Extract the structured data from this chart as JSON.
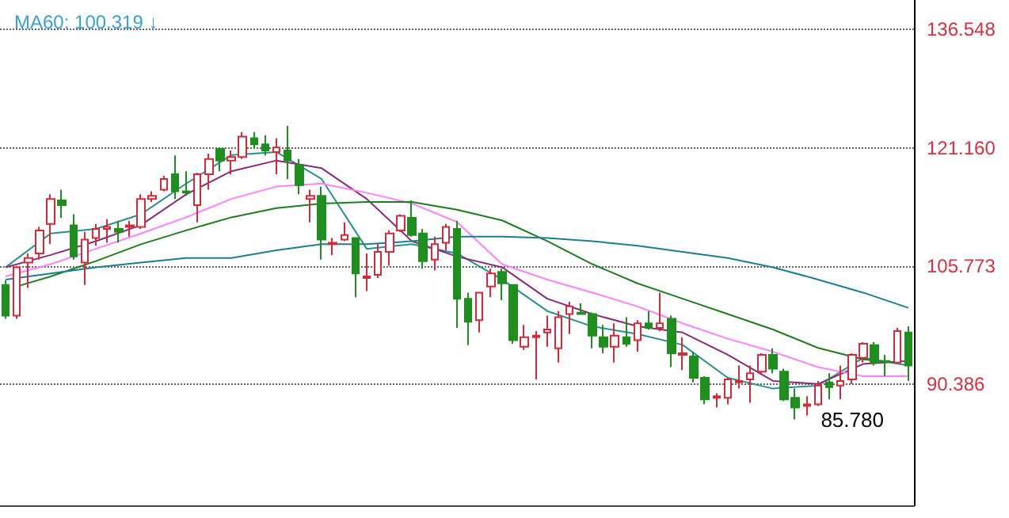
{
  "chart_data": {
    "type": "candlestick",
    "title": "MA60: 100.319 ↓",
    "categories": [
      null,
      null,
      null,
      null,
      null,
      null,
      null,
      null,
      null,
      null,
      null,
      null,
      null,
      null,
      null,
      null,
      null,
      null,
      null,
      null,
      null,
      null,
      null,
      null,
      null,
      null,
      null,
      null,
      null,
      null,
      null,
      null,
      null,
      null,
      null,
      null,
      null,
      null,
      null,
      null,
      null,
      null,
      null,
      null,
      null,
      null,
      null,
      null,
      null,
      null,
      null,
      null,
      null,
      null,
      null,
      null,
      null,
      null,
      null,
      null,
      null,
      null,
      null,
      null,
      null,
      null,
      null,
      null,
      null,
      null,
      null,
      null,
      null,
      null,
      null,
      null,
      null,
      null,
      null,
      null,
      null
    ],
    "ohlc": [
      [
        103.3,
        103.9,
        98.9,
        99.3
      ],
      [
        99.3,
        105.6,
        98.9,
        105.6
      ],
      [
        106.2,
        107.4,
        102.9,
        106.8
      ],
      [
        107.4,
        110.85,
        106.6,
        110.4
      ],
      [
        111.25,
        115.1,
        108.6,
        114.5
      ],
      [
        114.3,
        115.7,
        112.05,
        113.7
      ],
      [
        111.05,
        112.5,
        106.6,
        107.0
      ],
      [
        106.2,
        110.2,
        103.3,
        109.2
      ],
      [
        109.4,
        111.25,
        108.4,
        110.6
      ],
      [
        110.6,
        111.85,
        108.8,
        110.85
      ],
      [
        110.6,
        111.65,
        108.8,
        110.2
      ],
      [
        110.85,
        111.65,
        109.6,
        111.05
      ],
      [
        110.85,
        115.1,
        110.6,
        114.5
      ],
      [
        114.5,
        115.5,
        114.1,
        114.9
      ],
      [
        115.7,
        117.5,
        115.5,
        117.1
      ],
      [
        117.7,
        120.15,
        114.5,
        115.5
      ],
      [
        115.5,
        118.1,
        114.9,
        115.3
      ],
      [
        113.7,
        117.9,
        111.45,
        117.7
      ],
      [
        117.7,
        120.4,
        115.7,
        119.7
      ],
      [
        121.0,
        121.2,
        118.1,
        119.5
      ],
      [
        119.5,
        120.8,
        117.7,
        119.95
      ],
      [
        119.95,
        123.2,
        119.7,
        122.6
      ],
      [
        122.4,
        123.2,
        121.0,
        121.6
      ],
      [
        121.6,
        122.8,
        120.15,
        120.8
      ],
      [
        120.6,
        122.4,
        117.7,
        121.2
      ],
      [
        120.8,
        124.0,
        117.1,
        119.5
      ],
      [
        118.9,
        119.7,
        115.1,
        116.3
      ],
      [
        114.5,
        115.7,
        111.45,
        114.9
      ],
      [
        114.9,
        116.1,
        106.6,
        109.2
      ],
      [
        108.6,
        109.4,
        107.2,
        108.8
      ],
      [
        109.2,
        111.45,
        109.0,
        109.8
      ],
      [
        109.4,
        109.4,
        101.7,
        104.8
      ],
      [
        104.2,
        107.4,
        102.5,
        104.4
      ],
      [
        104.6,
        108.6,
        104.2,
        107.6
      ],
      [
        107.6,
        110.4,
        105.8,
        110.0
      ],
      [
        110.4,
        112.5,
        110.2,
        112.3
      ],
      [
        112.05,
        114.3,
        109.6,
        109.8
      ],
      [
        110.0,
        110.6,
        105.4,
        106.4
      ],
      [
        106.6,
        109.6,
        105.2,
        108.6
      ],
      [
        108.8,
        111.25,
        107.8,
        110.85
      ],
      [
        110.6,
        111.65,
        97.7,
        101.5
      ],
      [
        101.5,
        102.3,
        95.45,
        98.5
      ],
      [
        98.7,
        102.3,
        97.1,
        102.3
      ],
      [
        103.1,
        105.4,
        101.7,
        104.8
      ],
      [
        105.0,
        105.4,
        101.3,
        103.5
      ],
      [
        103.3,
        103.3,
        95.65,
        96.1
      ],
      [
        95.25,
        98.1,
        94.85,
        96.5
      ],
      [
        96.5,
        97.3,
        91.0,
        96.7
      ],
      [
        97.1,
        99.3,
        95.25,
        97.5
      ],
      [
        95.05,
        99.9,
        93.2,
        99.1
      ],
      [
        99.5,
        101.1,
        96.9,
        100.5
      ],
      [
        99.7,
        100.9,
        99.5,
        99.5
      ],
      [
        99.5,
        99.7,
        95.05,
        96.7
      ],
      [
        96.5,
        98.1,
        94.4,
        95.25
      ],
      [
        95.25,
        98.3,
        93.2,
        96.7
      ],
      [
        96.5,
        99.1,
        95.25,
        95.65
      ],
      [
        96.1,
        98.7,
        94.6,
        98.3
      ],
      [
        98.3,
        99.9,
        97.5,
        97.7
      ],
      [
        97.7,
        102.3,
        97.3,
        98.3
      ],
      [
        98.9,
        99.3,
        92.6,
        94.4
      ],
      [
        94.2,
        96.5,
        92.2,
        94.4
      ],
      [
        94.0,
        94.6,
        90.6,
        91.2
      ],
      [
        91.2,
        91.4,
        87.75,
        88.4
      ],
      [
        88.6,
        89.2,
        87.35,
        88.8
      ],
      [
        88.6,
        91.2,
        87.75,
        91.0
      ],
      [
        90.6,
        92.8,
        89.8,
        90.8
      ],
      [
        91.0,
        92.8,
        87.95,
        91.8
      ],
      [
        92.0,
        94.4,
        91.8,
        94.2
      ],
      [
        94.2,
        95.05,
        91.8,
        92.4
      ],
      [
        92.0,
        92.4,
        88.2,
        88.4
      ],
      [
        88.6,
        89.8,
        85.78,
        87.35
      ],
      [
        87.55,
        88.8,
        86.3,
        87.75
      ],
      [
        87.75,
        90.8,
        87.55,
        90.2
      ],
      [
        90.6,
        91.8,
        88.4,
        90.0
      ],
      [
        90.2,
        92.8,
        88.4,
        90.8
      ],
      [
        91.0,
        94.4,
        90.4,
        94.2
      ],
      [
        93.8,
        95.85,
        93.2,
        95.65
      ],
      [
        95.45,
        95.85,
        92.8,
        93.2
      ],
      [
        93.4,
        94.2,
        91.4,
        93.3
      ],
      [
        93.2,
        97.7,
        93.2,
        97.3
      ],
      [
        97.1,
        97.9,
        90.8,
        92.8
      ]
    ],
    "colors": [
      "#1e8f1e",
      "#d42a3a",
      "#d42a3a",
      "#d42a3a",
      "#d42a3a",
      "#1e8f1e",
      "#1e8f1e",
      "#d42a3a",
      "#d42a3a",
      "#d42a3a",
      "#1e8f1e",
      "#d42a3a",
      "#d42a3a",
      "#d42a3a",
      "#d42a3a",
      "#1e8f1e",
      "#1e8f1e",
      "#d42a3a",
      "#d42a3a",
      "#1e8f1e",
      "#d42a3a",
      "#d42a3a",
      "#1e8f1e",
      "#1e8f1e",
      "#d42a3a",
      "#1e8f1e",
      "#1e8f1e",
      "#d42a3a",
      "#1e8f1e",
      "#d42a3a",
      "#d42a3a",
      "#1e8f1e",
      "#d42a3a",
      "#d42a3a",
      "#d42a3a",
      "#d42a3a",
      "#1e8f1e",
      "#1e8f1e",
      "#d42a3a",
      "#d42a3a",
      "#1e8f1e",
      "#1e8f1e",
      "#d42a3a",
      "#d42a3a",
      "#1e8f1e",
      "#1e8f1e",
      "#d42a3a",
      "#d42a3a",
      "#d42a3a",
      "#d42a3a",
      "#d42a3a",
      "#1e8f1e",
      "#1e8f1e",
      "#1e8f1e",
      "#d42a3a",
      "#1e8f1e",
      "#d42a3a",
      "#1e8f1e",
      "#d42a3a",
      "#1e8f1e",
      "#d42a3a",
      "#1e8f1e",
      "#1e8f1e",
      "#d42a3a",
      "#d42a3a",
      "#d42a3a",
      "#d42a3a",
      "#d42a3a",
      "#1e8f1e",
      "#1e8f1e",
      "#1e8f1e",
      "#d42a3a",
      "#d42a3a",
      "#1e8f1e",
      "#d42a3a",
      "#d42a3a",
      "#d42a3a",
      "#1e8f1e",
      "#1e8f1e",
      "#d42a3a",
      "#1e8f1e"
    ],
    "series": [
      {
        "type": "line",
        "color": "#2a8f8f",
        "values": [
          105.6,
          null,
          null,
          null,
          110.0,
          null,
          null,
          null,
          110.6,
          null,
          null,
          null,
          112.5,
          null,
          null,
          null,
          116.5,
          null,
          null,
          null,
          120.2,
          null,
          null,
          null,
          120.6,
          null,
          null,
          null,
          117.1,
          null,
          null,
          null,
          108.0,
          null,
          null,
          null,
          108.6,
          null,
          null,
          null,
          107.4,
          null,
          null,
          null,
          104.0,
          null,
          null,
          null,
          99.9,
          null,
          null,
          null,
          97.9,
          null,
          null,
          null,
          96.9,
          null,
          null,
          null,
          95.5,
          null,
          null,
          null,
          91.2,
          null,
          null,
          null,
          89.8,
          null,
          null,
          null,
          90.2,
          null,
          null,
          null,
          93.8,
          null,
          null,
          null,
          92.8
        ]
      },
      {
        "type": "line",
        "color": "#8b2a7a",
        "values": [
          105.6,
          null,
          null,
          null,
          107.2,
          null,
          null,
          null,
          109.0,
          null,
          null,
          null,
          111.1,
          null,
          null,
          null,
          115.1,
          null,
          null,
          null,
          118.1,
          null,
          null,
          null,
          119.5,
          null,
          null,
          null,
          118.5,
          null,
          null,
          null,
          114.5,
          null,
          null,
          null,
          109.0,
          null,
          null,
          null,
          107.0,
          null,
          null,
          null,
          105.6,
          null,
          null,
          null,
          101.5,
          null,
          null,
          null,
          99.5,
          null,
          null,
          null,
          97.9,
          null,
          null,
          null,
          97.1,
          null,
          null,
          null,
          94.2,
          null,
          null,
          null,
          90.8,
          null,
          null,
          null,
          90.4,
          null,
          null,
          null,
          93.0,
          null,
          null,
          null,
          93.4
        ]
      },
      {
        "type": "line",
        "color": "#ff80ff",
        "values": [
          104.4,
          null,
          null,
          null,
          106.0,
          null,
          null,
          null,
          108.0,
          null,
          null,
          null,
          110.0,
          null,
          null,
          null,
          112.1,
          null,
          null,
          null,
          114.5,
          null,
          null,
          null,
          116.1,
          null,
          null,
          null,
          116.5,
          null,
          null,
          null,
          115.3,
          null,
          null,
          null,
          113.9,
          null,
          null,
          null,
          111.5,
          null,
          null,
          null,
          106.0,
          null,
          null,
          null,
          104.0,
          null,
          null,
          null,
          102.3,
          null,
          null,
          null,
          100.5,
          null,
          null,
          null,
          98.3,
          null,
          null,
          null,
          96.3,
          null,
          null,
          null,
          94.6,
          null,
          null,
          null,
          92.6,
          null,
          null,
          null,
          91.4,
          null,
          null,
          null,
          91.4
        ]
      },
      {
        "type": "line",
        "color": "#1e7d1e",
        "values": [
          null,
          103.1,
          null,
          null,
          104.4,
          null,
          null,
          null,
          106.4,
          null,
          null,
          null,
          108.6,
          null,
          null,
          null,
          110.4,
          null,
          null,
          null,
          112.1,
          null,
          null,
          null,
          113.3,
          null,
          null,
          null,
          113.9,
          null,
          null,
          null,
          114.1,
          null,
          null,
          null,
          114.1,
          null,
          null,
          null,
          113.1,
          null,
          null,
          null,
          111.7,
          null,
          null,
          null,
          109.0,
          null,
          null,
          null,
          106.0,
          null,
          null,
          null,
          103.5,
          null,
          null,
          null,
          101.5,
          null,
          null,
          null,
          99.5,
          null,
          null,
          null,
          97.5,
          null,
          null,
          null,
          95.1,
          null,
          null,
          null,
          93.6,
          null,
          null,
          93.2,
          null
        ]
      },
      {
        "type": "line",
        "color": "#1b7f8f",
        "values": [
          104.0,
          null,
          null,
          null,
          104.8,
          null,
          null,
          null,
          105.6,
          null,
          null,
          null,
          106.2,
          null,
          null,
          null,
          106.8,
          null,
          null,
          null,
          106.8,
          null,
          null,
          null,
          107.8,
          null,
          null,
          null,
          108.6,
          null,
          null,
          null,
          108.6,
          null,
          null,
          null,
          109.0,
          null,
          null,
          null,
          109.6,
          null,
          null,
          null,
          109.6,
          null,
          null,
          null,
          109.4,
          null,
          null,
          null,
          109.0,
          null,
          null,
          null,
          108.4,
          null,
          null,
          null,
          107.6,
          null,
          null,
          null,
          106.8,
          null,
          null,
          null,
          105.6,
          null,
          null,
          null,
          104.0,
          null,
          null,
          null,
          102.3,
          null,
          null,
          null,
          100.319
        ]
      }
    ],
    "ylim": [
      74.6,
      140.4
    ],
    "yticks": [
      90.386,
      {
        "value": 105.773,
        "label": "105.773"
      },
      {
        "value": 121.16,
        "label": "121.160"
      },
      136.548
    ],
    "grid": "y",
    "line_style": "solid",
    "annotations": [
      "85.780"
    ]
  }
}
